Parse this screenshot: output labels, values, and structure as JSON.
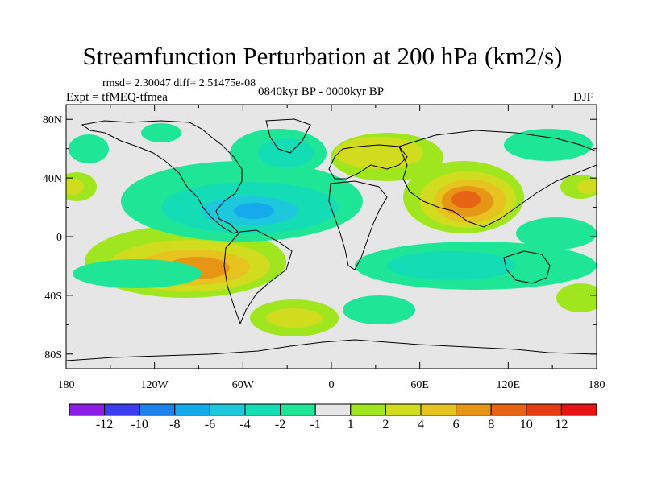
{
  "title": "Streamfunction Perturbation at 200 hPa (km2/s)",
  "stats": "rmsd= 2.30047 diff= 2.51475e-08",
  "experiment": "Expt = tfMEQ-tfmea",
  "period": "0840kyr BP - 0000kyr BP",
  "season": "DJF",
  "lat_ticks": [
    "80N",
    "40N",
    "0",
    "40S",
    "80S"
  ],
  "lon_ticks": [
    "180",
    "120W",
    "60W",
    "0",
    "60E",
    "120E",
    "180"
  ],
  "colorbar": {
    "labels": [
      "-12",
      "-10",
      "-8",
      "-6",
      "-4",
      "-2",
      "-1",
      "1",
      "2",
      "4",
      "6",
      "8",
      "10",
      "12"
    ],
    "colors": [
      "#8c1ee6",
      "#3c3cf0",
      "#1e82eb",
      "#14aaeb",
      "#1ec8dc",
      "#14dcb4",
      "#1ee696",
      "#e6e6e6",
      "#a0e61e",
      "#d2dc1e",
      "#e6c31e",
      "#e69614",
      "#e66414",
      "#e63c14",
      "#e61414"
    ]
  },
  "map": {
    "projection": "cylindrical-equidistant",
    "lon_range": [
      -180,
      180
    ],
    "lat_range": [
      -90,
      90
    ],
    "background_color": "#e6e6e6",
    "coastline_color": "#000000"
  }
}
